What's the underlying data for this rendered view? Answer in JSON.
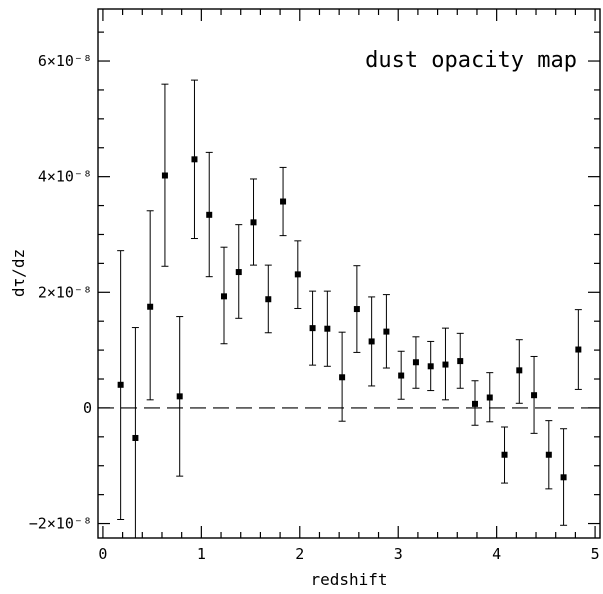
{
  "chart_data": {
    "type": "scatter",
    "title": "dust opacity map",
    "title_position": "top-right",
    "xlabel": "redshift",
    "ylabel": "dτ/dz",
    "xlim": [
      -0.05,
      5.05
    ],
    "ylim": [
      -2.25e-08,
      6.9e-08
    ],
    "x_ticks": [
      {
        "value": 0,
        "label": "0"
      },
      {
        "value": 1,
        "label": "1"
      },
      {
        "value": 2,
        "label": "2"
      },
      {
        "value": 3,
        "label": "3"
      },
      {
        "value": 4,
        "label": "4"
      },
      {
        "value": 5,
        "label": "5"
      }
    ],
    "y_ticks": [
      {
        "value": -2e-08,
        "label": "−2×10⁻⁸"
      },
      {
        "value": 0,
        "label": "0"
      },
      {
        "value": 2e-08,
        "label": "2×10⁻⁸"
      },
      {
        "value": 4e-08,
        "label": "4×10⁻⁸"
      },
      {
        "value": 6e-08,
        "label": "6×10⁻⁸"
      }
    ],
    "x_minor_step": 0.2,
    "y_minor_step": 5e-09,
    "reference_line": {
      "y": 0,
      "style": "dashed"
    },
    "grid": false,
    "series": [
      {
        "marker": "square",
        "color": "#000000",
        "points": [
          {
            "x": 0.18,
            "y": 4e-09,
            "lo": -1.93e-08,
            "hi": 2.72e-08
          },
          {
            "x": 0.33,
            "y": -5.2e-09,
            "lo": -2.25e-08,
            "hi": 1.39e-08
          },
          {
            "x": 0.48,
            "y": 1.75e-08,
            "lo": 1.4e-09,
            "hi": 3.41e-08
          },
          {
            "x": 0.63,
            "y": 4.02e-08,
            "lo": 2.45e-08,
            "hi": 5.6e-08
          },
          {
            "x": 0.78,
            "y": 2e-09,
            "lo": -1.18e-08,
            "hi": 1.58e-08
          },
          {
            "x": 0.93,
            "y": 4.3e-08,
            "lo": 2.93e-08,
            "hi": 5.67e-08
          },
          {
            "x": 1.08,
            "y": 3.34e-08,
            "lo": 2.27e-08,
            "hi": 4.42e-08
          },
          {
            "x": 1.23,
            "y": 1.93e-08,
            "lo": 1.11e-08,
            "hi": 2.78e-08
          },
          {
            "x": 1.38,
            "y": 2.35e-08,
            "lo": 1.55e-08,
            "hi": 3.17e-08
          },
          {
            "x": 1.53,
            "y": 3.21e-08,
            "lo": 2.47e-08,
            "hi": 3.96e-08
          },
          {
            "x": 1.68,
            "y": 1.88e-08,
            "lo": 1.3e-08,
            "hi": 2.47e-08
          },
          {
            "x": 1.83,
            "y": 3.57e-08,
            "lo": 2.98e-08,
            "hi": 4.16e-08
          },
          {
            "x": 1.98,
            "y": 2.31e-08,
            "lo": 1.72e-08,
            "hi": 2.89e-08
          },
          {
            "x": 2.13,
            "y": 1.38e-08,
            "lo": 7.4e-09,
            "hi": 2.02e-08
          },
          {
            "x": 2.28,
            "y": 1.37e-08,
            "lo": 7.2e-09,
            "hi": 2.02e-08
          },
          {
            "x": 2.43,
            "y": 5.3e-09,
            "lo": -2.3e-09,
            "hi": 1.31e-08
          },
          {
            "x": 2.58,
            "y": 1.71e-08,
            "lo": 9.6e-09,
            "hi": 2.46e-08
          },
          {
            "x": 2.73,
            "y": 1.15e-08,
            "lo": 3.8e-09,
            "hi": 1.92e-08
          },
          {
            "x": 2.88,
            "y": 1.32e-08,
            "lo": 6.9e-09,
            "hi": 1.96e-08
          },
          {
            "x": 3.03,
            "y": 5.6e-09,
            "lo": 1.5e-09,
            "hi": 9.8e-09
          },
          {
            "x": 3.18,
            "y": 7.9e-09,
            "lo": 3.4e-09,
            "hi": 1.23e-08
          },
          {
            "x": 3.33,
            "y": 7.2e-09,
            "lo": 3e-09,
            "hi": 1.15e-08
          },
          {
            "x": 3.48,
            "y": 7.5e-09,
            "lo": 1.4e-09,
            "hi": 1.38e-08
          },
          {
            "x": 3.63,
            "y": 8.1e-09,
            "lo": 3.4e-09,
            "hi": 1.29e-08
          },
          {
            "x": 3.78,
            "y": 7e-10,
            "lo": -3e-09,
            "hi": 4.7e-09
          },
          {
            "x": 3.93,
            "y": 1.8e-09,
            "lo": -2.4e-09,
            "hi": 6.1e-09
          },
          {
            "x": 4.08,
            "y": -8.1e-09,
            "lo": -1.3e-08,
            "hi": -3.3e-09
          },
          {
            "x": 4.23,
            "y": 6.5e-09,
            "lo": 8e-10,
            "hi": 1.18e-08
          },
          {
            "x": 4.38,
            "y": 2.2e-09,
            "lo": -4.4e-09,
            "hi": 8.9e-09
          },
          {
            "x": 4.53,
            "y": -8.1e-09,
            "lo": -1.4e-08,
            "hi": -2.2e-09
          },
          {
            "x": 4.68,
            "y": -1.2e-08,
            "lo": -2.03e-08,
            "hi": -3.6e-09
          },
          {
            "x": 4.83,
            "y": 1.01e-08,
            "lo": 3.2e-09,
            "hi": 1.7e-08
          }
        ]
      }
    ]
  }
}
